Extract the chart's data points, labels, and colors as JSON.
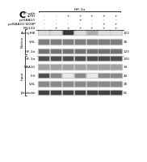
{
  "title": "C",
  "ip_label": "IP with",
  "hif_label": "HIF-1α",
  "cond_labels": [
    "siFIH",
    "pcHAA10",
    "pcNAA10 W28P",
    "MG132"
  ],
  "cond_keys": [
    "siFIH",
    "pcHAA10",
    "pcNAA10W28P",
    "MG132"
  ],
  "conditions": [
    {
      "siFIH": "-",
      "pcHAA10": "-",
      "pcNAA10W28P": "-",
      "MG132": "-"
    },
    {
      "siFIH": "-",
      "pcHAA10": "-",
      "pcNAA10W28P": "-",
      "MG132": "+"
    },
    {
      "siFIH": "+",
      "pcHAA10": "-",
      "pcNAA10W28P": "-",
      "MG132": "+"
    },
    {
      "siFIH": "+",
      "pcHAA10": "+",
      "pcNAA10W28P": "-",
      "MG132": "+"
    },
    {
      "siFIH": "+",
      "pcHAA10": "-",
      "pcNAA10W28P": "-",
      "MG132": "+"
    },
    {
      "siFIH": "+",
      "pcHAA10": "-",
      "pcNAA10W28P": "+",
      "MG132": "+"
    },
    {
      "siFIH": "+",
      "pcHAA10": "-",
      "pcNAA10W28P": "+",
      "MG132": "+"
    }
  ],
  "elution_label": "Elution",
  "input_label": "Input",
  "elution_bands": [
    {
      "name": "AcetylHK",
      "mw": "123",
      "intensities": [
        0.15,
        0.15,
        0.85,
        0.15,
        0.35,
        0.15,
        0.15
      ]
    },
    {
      "name": "VHL",
      "mw": "35",
      "intensities": [
        0.55,
        0.55,
        0.55,
        0.55,
        0.55,
        0.55,
        0.55
      ]
    },
    {
      "name": "HIF-1α",
      "mw": "123",
      "intensities": [
        0.6,
        0.6,
        0.6,
        0.6,
        0.6,
        0.6,
        0.6
      ]
    }
  ],
  "input_bands": [
    {
      "name": "HIF-1α",
      "mw": "120",
      "intensities": [
        0.75,
        0.75,
        0.75,
        0.75,
        0.75,
        0.75,
        0.75
      ]
    },
    {
      "name": "NAA10",
      "mw": "34",
      "intensities": [
        0.4,
        0.4,
        0.4,
        0.4,
        0.4,
        0.4,
        0.4
      ]
    },
    {
      "name": "FIH",
      "mw": "43",
      "intensities": [
        0.75,
        0.5,
        0.1,
        0.5,
        0.1,
        0.5,
        0.5
      ]
    },
    {
      "name": "VHL",
      "mw": "25",
      "intensities": [
        0.5,
        0.5,
        0.5,
        0.5,
        0.5,
        0.5,
        0.5
      ]
    },
    {
      "name": "β-tubulin",
      "mw": "61",
      "intensities": [
        0.8,
        0.8,
        0.8,
        0.8,
        0.8,
        0.8,
        0.8
      ]
    }
  ],
  "gel_bg": "#c8c8c8",
  "band_dark": "#1a1a1a",
  "bg_color": "#ffffff"
}
